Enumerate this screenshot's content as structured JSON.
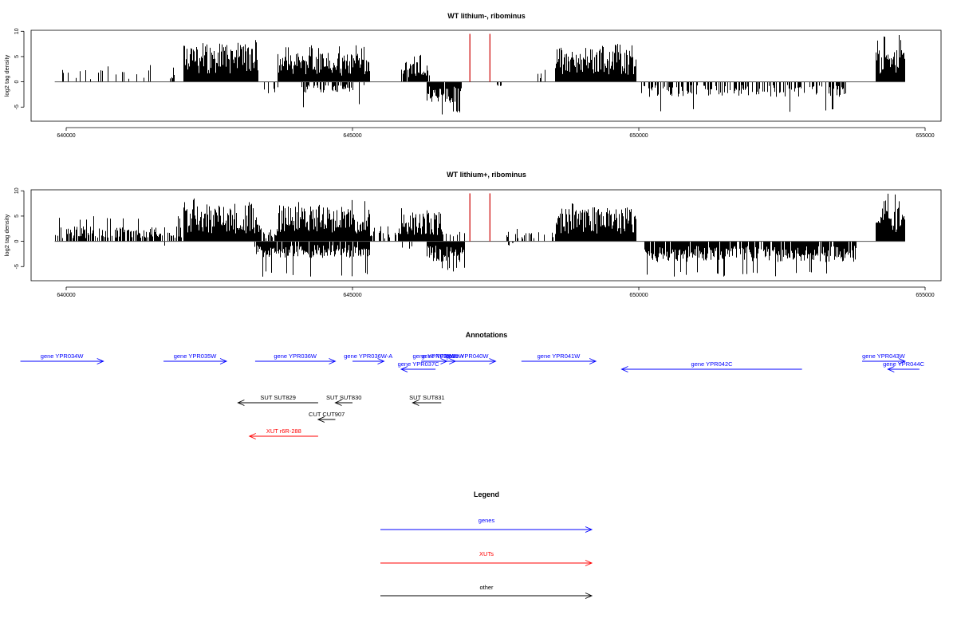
{
  "colors": {
    "bars": "#000000",
    "marker": "#cc0000",
    "gene": "#0000ff",
    "xut": "#ff0000",
    "other": "#000000",
    "axis": "#000000"
  },
  "chart_data": [
    {
      "type": "bar",
      "title": "WT lithium-, ribominus",
      "ylabel": "log2 tag density",
      "xlim": [
        639400,
        654900
      ],
      "ylim": [
        -7.8,
        10.2
      ],
      "xticks": [
        640000,
        645000,
        650000,
        655000
      ],
      "xtick_labels": [
        "640000",
        "645000",
        "650000",
        "655000"
      ],
      "yticks": [
        -5,
        0,
        5,
        10
      ],
      "ytick_labels": [
        "-5",
        "0",
        "5",
        "10"
      ],
      "markers": [
        {
          "x": 647050,
          "y": 9.5
        },
        {
          "x": 647400,
          "y": 9.5
        }
      ],
      "series": [
        {
          "strand": "plus",
          "segments": [
            {
              "x0": 639800,
              "x1": 641500,
              "mean": 1.5,
              "max": 3.5,
              "density": 0.18
            },
            {
              "x0": 641800,
              "x1": 641900,
              "mean": 1.2,
              "max": 3.0,
              "density": 0.5
            },
            {
              "x0": 642050,
              "x1": 643350,
              "mean": 4.5,
              "max": 8.5,
              "density": 1.0
            },
            {
              "x0": 643700,
              "x1": 645300,
              "mean": 3.5,
              "max": 7.5,
              "density": 1.0
            },
            {
              "x0": 645850,
              "x1": 646350,
              "mean": 2.5,
              "max": 5.5,
              "density": 0.9
            },
            {
              "x0": 647950,
              "x1": 648400,
              "mean": 1.0,
              "max": 2.5,
              "density": 0.1
            },
            {
              "x0": 648550,
              "x1": 649950,
              "mean": 4.0,
              "max": 7.5,
              "density": 1.0
            },
            {
              "x0": 654150,
              "x1": 654650,
              "mean": 4.0,
              "max": 9.3,
              "density": 1.0
            }
          ]
        },
        {
          "strand": "minus",
          "segments": [
            {
              "x0": 643400,
              "x1": 643700,
              "mean": 1.5,
              "max": 2.5,
              "density": 0.15
            },
            {
              "x0": 644100,
              "x1": 645200,
              "mean": 1.5,
              "max": 5.2,
              "density": 0.4
            },
            {
              "x0": 646300,
              "x1": 646900,
              "mean": 2.5,
              "max": 6.5,
              "density": 0.9
            },
            {
              "x0": 647500,
              "x1": 647600,
              "mean": 0.5,
              "max": 1.0,
              "density": 0.2
            },
            {
              "x0": 650050,
              "x1": 653700,
              "mean": 1.8,
              "max": 6.0,
              "density": 0.45
            }
          ]
        }
      ]
    },
    {
      "type": "bar",
      "title": "WT lithium+, ribominus",
      "ylabel": "log2 tag density",
      "xlim": [
        639400,
        654900
      ],
      "ylim": [
        -7.8,
        10.2
      ],
      "xticks": [
        640000,
        645000,
        650000,
        655000
      ],
      "xtick_labels": [
        "640000",
        "645000",
        "650000",
        "655000"
      ],
      "yticks": [
        -5,
        0,
        5,
        10
      ],
      "ytick_labels": [
        "-5",
        "0",
        "5",
        "10"
      ],
      "markers": [
        {
          "x": 647050,
          "y": 9.5
        },
        {
          "x": 647400,
          "y": 9.5
        }
      ],
      "series": [
        {
          "strand": "plus",
          "segments": [
            {
              "x0": 639800,
              "x1": 642050,
              "mean": 1.8,
              "max": 5.0,
              "density": 0.6
            },
            {
              "x0": 642050,
              "x1": 643400,
              "mean": 4.5,
              "max": 8.5,
              "density": 1.0
            },
            {
              "x0": 643400,
              "x1": 643700,
              "mean": 1.5,
              "max": 3.0,
              "density": 0.5
            },
            {
              "x0": 643700,
              "x1": 645300,
              "mean": 4.5,
              "max": 8.5,
              "density": 1.0
            },
            {
              "x0": 645300,
              "x1": 645850,
              "mean": 1.5,
              "max": 3.0,
              "density": 0.5
            },
            {
              "x0": 645850,
              "x1": 646550,
              "mean": 3.5,
              "max": 7.0,
              "density": 1.0
            },
            {
              "x0": 646550,
              "x1": 646950,
              "mean": 1.0,
              "max": 2.0,
              "density": 0.3
            },
            {
              "x0": 647700,
              "x1": 648550,
              "mean": 1.2,
              "max": 2.5,
              "density": 0.3
            },
            {
              "x0": 648550,
              "x1": 649950,
              "mean": 4.0,
              "max": 7.8,
              "density": 1.0
            },
            {
              "x0": 654150,
              "x1": 654650,
              "mean": 5.0,
              "max": 9.5,
              "density": 1.0
            }
          ]
        },
        {
          "strand": "minus",
          "segments": [
            {
              "x0": 641700,
              "x1": 641800,
              "mean": 1.0,
              "max": 2.0,
              "density": 0.3
            },
            {
              "x0": 643300,
              "x1": 645300,
              "mean": 2.0,
              "max": 7.0,
              "density": 0.9
            },
            {
              "x0": 645800,
              "x1": 646050,
              "mean": 0.8,
              "max": 1.5,
              "density": 0.4
            },
            {
              "x0": 646300,
              "x1": 646950,
              "mean": 2.5,
              "max": 6.0,
              "density": 1.0
            },
            {
              "x0": 647700,
              "x1": 647900,
              "mean": 0.5,
              "max": 1.0,
              "density": 0.3
            },
            {
              "x0": 650100,
              "x1": 653800,
              "mean": 2.5,
              "max": 7.0,
              "density": 0.9
            }
          ]
        }
      ]
    }
  ],
  "annotations": {
    "title": "Annotations",
    "xlim": [
      639400,
      654900
    ],
    "features": [
      {
        "label": "gene YPR034W",
        "type": "gene",
        "strand": "+",
        "start": 639200,
        "end": 640650,
        "row": 0
      },
      {
        "label": "gene YPR035W",
        "type": "gene",
        "strand": "+",
        "start": 641700,
        "end": 642800,
        "row": 0
      },
      {
        "label": "gene YPR036W",
        "type": "gene",
        "strand": "+",
        "start": 643300,
        "end": 644700,
        "row": 0
      },
      {
        "label": "gene YPR036W-A",
        "type": "gene",
        "strand": "+",
        "start": 645000,
        "end": 645550,
        "row": 0
      },
      {
        "label": "gene YPR037C",
        "type": "gene",
        "strand": "-",
        "start": 645850,
        "end": 646450,
        "row": 1
      },
      {
        "label": "gene YPR038W",
        "type": "gene",
        "strand": "+",
        "start": 646200,
        "end": 646650,
        "row": 0
      },
      {
        "label": "gene YPR039W",
        "type": "gene",
        "strand": "+",
        "start": 646350,
        "end": 646800,
        "row": 0
      },
      {
        "label": "gene YPR040W",
        "type": "gene",
        "strand": "+",
        "start": 646500,
        "end": 647500,
        "row": 0
      },
      {
        "label": "gene YPR041W",
        "type": "gene",
        "strand": "+",
        "start": 647950,
        "end": 649250,
        "row": 0
      },
      {
        "label": "gene YPR042C",
        "type": "gene",
        "strand": "-",
        "start": 649700,
        "end": 652850,
        "row": 1
      },
      {
        "label": "gene YPR043W",
        "type": "gene",
        "strand": "+",
        "start": 653900,
        "end": 654650,
        "row": 0
      },
      {
        "label": "gene YPR044C",
        "type": "gene",
        "strand": "-",
        "start": 654350,
        "end": 654900,
        "row": 1
      },
      {
        "label": "SUT SUT829",
        "type": "other",
        "strand": "-",
        "start": 643000,
        "end": 644400,
        "row": 3
      },
      {
        "label": "SUT SUT830",
        "type": "other",
        "strand": "-",
        "start": 644700,
        "end": 645000,
        "row": 3
      },
      {
        "label": "SUT SUT831",
        "type": "other",
        "strand": "-",
        "start": 646050,
        "end": 646550,
        "row": 3
      },
      {
        "label": "CUT CUT907",
        "type": "other",
        "strand": "-",
        "start": 644400,
        "end": 644700,
        "row": 4
      },
      {
        "label": "XUT r6R-288",
        "type": "xut",
        "strand": "-",
        "start": 643200,
        "end": 644400,
        "row": 5
      }
    ]
  },
  "legend": {
    "title": "Legend",
    "items": [
      {
        "label": "genes",
        "type": "gene"
      },
      {
        "label": "XUTs",
        "type": "xut"
      },
      {
        "label": "other",
        "type": "other"
      }
    ]
  }
}
